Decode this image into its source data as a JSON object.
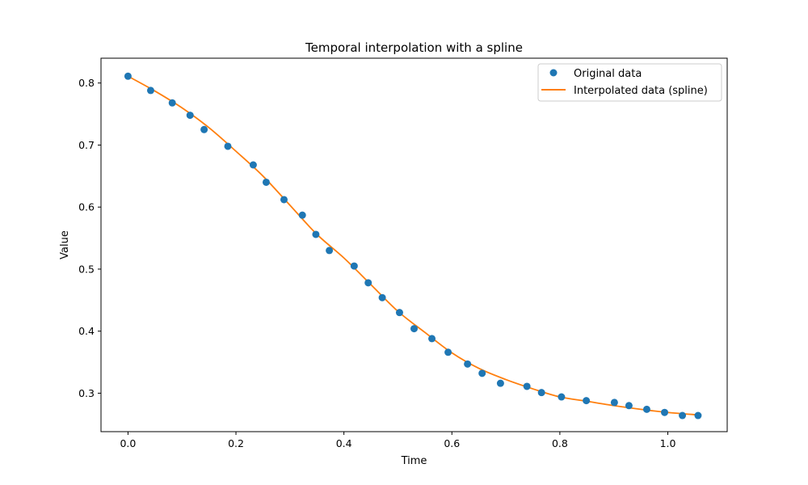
{
  "chart_data": {
    "type": "scatter",
    "title": "Temporal interpolation with a spline",
    "xlabel": "Time",
    "ylabel": "Value",
    "xlim": [
      -0.05,
      1.11
    ],
    "ylim": [
      0.238,
      0.84
    ],
    "xticks": [
      0.0,
      0.2,
      0.4,
      0.6,
      0.8,
      1.0
    ],
    "xtick_labels": [
      "0.0",
      "0.2",
      "0.4",
      "0.6",
      "0.8",
      "1.0"
    ],
    "yticks": [
      0.3,
      0.4,
      0.5,
      0.6,
      0.7,
      0.8
    ],
    "ytick_labels": [
      "0.3",
      "0.4",
      "0.5",
      "0.6",
      "0.7",
      "0.8"
    ],
    "grid": false,
    "legend_position": "top-right",
    "series": [
      {
        "name": "Original data",
        "kind": "scatter",
        "color": "#1f77b4",
        "x": [
          0.0,
          0.042,
          0.082,
          0.115,
          0.141,
          0.185,
          0.232,
          0.256,
          0.289,
          0.323,
          0.348,
          0.373,
          0.419,
          0.445,
          0.471,
          0.503,
          0.53,
          0.563,
          0.593,
          0.629,
          0.656,
          0.69,
          0.739,
          0.766,
          0.803,
          0.849,
          0.901,
          0.928,
          0.961,
          0.994,
          1.027,
          1.056
        ],
        "y": [
          0.811,
          0.788,
          0.768,
          0.748,
          0.725,
          0.698,
          0.668,
          0.64,
          0.612,
          0.587,
          0.556,
          0.53,
          0.505,
          0.478,
          0.454,
          0.43,
          0.404,
          0.388,
          0.366,
          0.347,
          0.332,
          0.316,
          0.311,
          0.301,
          0.294,
          0.288,
          0.285,
          0.28,
          0.274,
          0.269,
          0.264,
          0.264
        ]
      },
      {
        "name": "Interpolated data (spline)",
        "kind": "line",
        "color": "#ff7f0e",
        "x": [
          0.0,
          0.05,
          0.1,
          0.15,
          0.2,
          0.25,
          0.3,
          0.35,
          0.4,
          0.45,
          0.5,
          0.55,
          0.6,
          0.65,
          0.7,
          0.75,
          0.8,
          0.85,
          0.9,
          0.95,
          1.0,
          1.056
        ],
        "y": [
          0.811,
          0.787,
          0.76,
          0.728,
          0.69,
          0.65,
          0.603,
          0.556,
          0.518,
          0.475,
          0.432,
          0.398,
          0.365,
          0.34,
          0.322,
          0.307,
          0.294,
          0.287,
          0.28,
          0.274,
          0.269,
          0.265
        ]
      }
    ]
  }
}
